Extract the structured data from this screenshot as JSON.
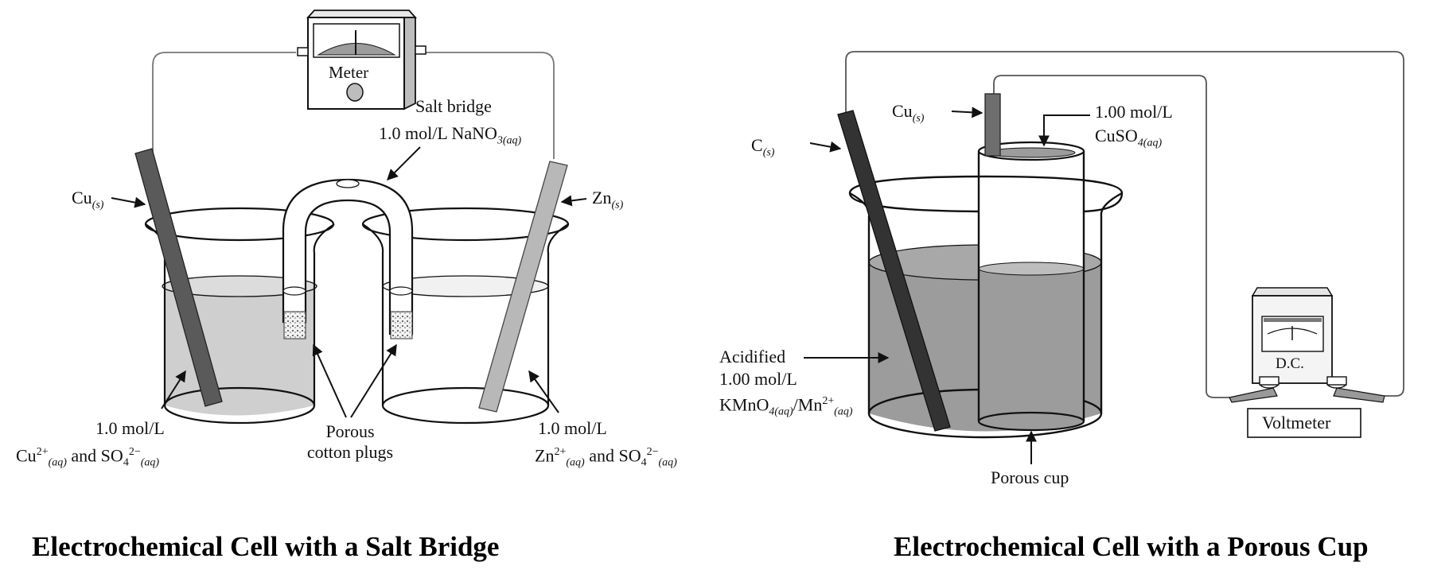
{
  "left_cell": {
    "caption": "Electrochemical Cell with a Salt Bridge",
    "meter_label": "Meter",
    "salt_bridge_label": "Salt bridge",
    "salt_bridge_solution": "1.0 mol/L NaNO",
    "salt_bridge_sub": "3(aq)",
    "cathode_electrode": "Cu",
    "cathode_state": "(s)",
    "anode_electrode": "Zn",
    "anode_state": "(s)",
    "left_solution_conc": "1.0 mol/L",
    "left_solution_ion1": "Cu",
    "left_solution_ion1_charge": "2+",
    "left_solution_ion1_state": "(aq)",
    "left_solution_and": " and SO",
    "left_solution_ion2_sub": "4",
    "left_solution_ion2_charge": "2−",
    "left_solution_ion2_state": "(aq)",
    "right_solution_conc": "1.0 mol/L",
    "right_solution_ion1": "Zn",
    "right_solution_ion1_charge": "2+",
    "right_solution_ion1_state": "(aq)",
    "right_solution_and": " and SO",
    "right_solution_ion2_sub": "4",
    "right_solution_ion2_charge": "2−",
    "right_solution_ion2_state": "(aq)",
    "plugs_label_line1": "Porous",
    "plugs_label_line2": "cotton plugs"
  },
  "right_cell": {
    "caption": "Electrochemical Cell with a Porous Cup",
    "carbon_electrode": "C",
    "carbon_state": "(s)",
    "copper_electrode": "Cu",
    "copper_state": "(s)",
    "cup_solution_conc": "1.00 mol/L",
    "cup_solution_formula": "CuSO",
    "cup_solution_sub": "4(aq)",
    "beaker_solution_line1": "Acidified",
    "beaker_solution_line2": "1.00 mol/L",
    "beaker_solution_kmno": "KMnO",
    "beaker_solution_kmno_sub": "4(aq)",
    "beaker_solution_mn": "/Mn",
    "beaker_solution_mn_charge": "2+",
    "beaker_solution_mn_state": "(aq)",
    "porous_cup_label": "Porous cup",
    "dc_label": "D.C.",
    "voltmeter_label": "Voltmeter"
  },
  "colors": {
    "solution_gray": "#cfcfcf",
    "solution_dark": "#9c9c9c",
    "cu_rod": "#5a5a5a",
    "zn_rod": "#b8b8b8",
    "carbon_rod": "#333333",
    "line": "#111111",
    "wire": "#777777"
  }
}
